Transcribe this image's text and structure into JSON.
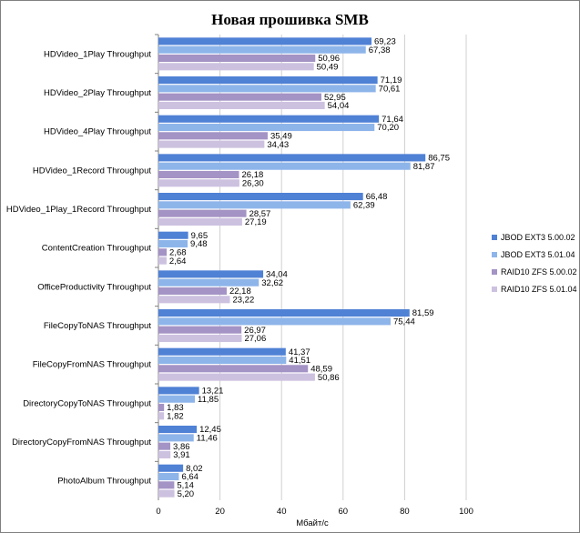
{
  "chart_data": {
    "type": "bar",
    "orientation": "horizontal",
    "title": "Новая прошивка SMB",
    "xlabel": "Мбайт/с",
    "ylabel": "",
    "xlim": [
      0,
      100
    ],
    "xticks": [
      "0",
      "20",
      "40",
      "60",
      "80",
      "100"
    ],
    "grid": true,
    "legend_position": "right",
    "categories": [
      "HDVideo_1Play Throughput",
      "HDVideo_2Play Throughput",
      "HDVideo_4Play Throughput",
      "HDVideo_1Record Throughput",
      "HDVideo_1Play_1Record Throughput",
      "ContentCreation Throughput",
      "OfficeProductivity Throughput",
      "FileCopyToNAS Throughput",
      "FileCopyFromNAS Throughput",
      "DirectoryCopyToNAS Throughput",
      "DirectoryCopyFromNAS Throughput",
      "PhotoAlbum Throughput"
    ],
    "series": [
      {
        "name": "JBOD EXT3  5.00.02",
        "color": "#4f81d5",
        "values": [
          69.23,
          71.19,
          71.64,
          86.75,
          66.48,
          9.65,
          34.04,
          81.59,
          41.37,
          13.21,
          12.45,
          8.02
        ],
        "labels": [
          "69,23",
          "71,19",
          "71,64",
          "86,75",
          "66,48",
          "9,65",
          "34,04",
          "81,59",
          "41,37",
          "13,21",
          "12,45",
          "8,02"
        ]
      },
      {
        "name": "JBOD EXT3  5.01.04",
        "color": "#8eb5ea",
        "values": [
          67.38,
          70.61,
          70.2,
          81.87,
          62.39,
          9.48,
          32.62,
          75.44,
          41.51,
          11.85,
          11.46,
          6.64
        ],
        "labels": [
          "67,38",
          "70,61",
          "70,20",
          "81,87",
          "62,39",
          "9,48",
          "32,62",
          "75,44",
          "41,51",
          "11,85",
          "11,46",
          "6,64"
        ]
      },
      {
        "name": "RAID10 ZFS  5.00.02",
        "color": "#a493c5",
        "values": [
          50.96,
          52.95,
          35.49,
          26.18,
          28.57,
          2.68,
          22.18,
          26.97,
          48.59,
          1.83,
          3.86,
          5.14
        ],
        "labels": [
          "50,96",
          "52,95",
          "35,49",
          "26,18",
          "28,57",
          "2,68",
          "22,18",
          "26,97",
          "48,59",
          "1,83",
          "3,86",
          "5,14"
        ]
      },
      {
        "name": "RAID10 ZFS  5.01.04",
        "color": "#cdc1e0",
        "values": [
          50.49,
          54.04,
          34.43,
          26.3,
          27.19,
          2.64,
          23.22,
          27.06,
          50.86,
          1.82,
          3.91,
          5.2
        ],
        "labels": [
          "50,49",
          "54,04",
          "34,43",
          "26,30",
          "27,19",
          "2,64",
          "23,22",
          "27,06",
          "50,86",
          "1,82",
          "3,91",
          "5,20"
        ]
      }
    ]
  }
}
